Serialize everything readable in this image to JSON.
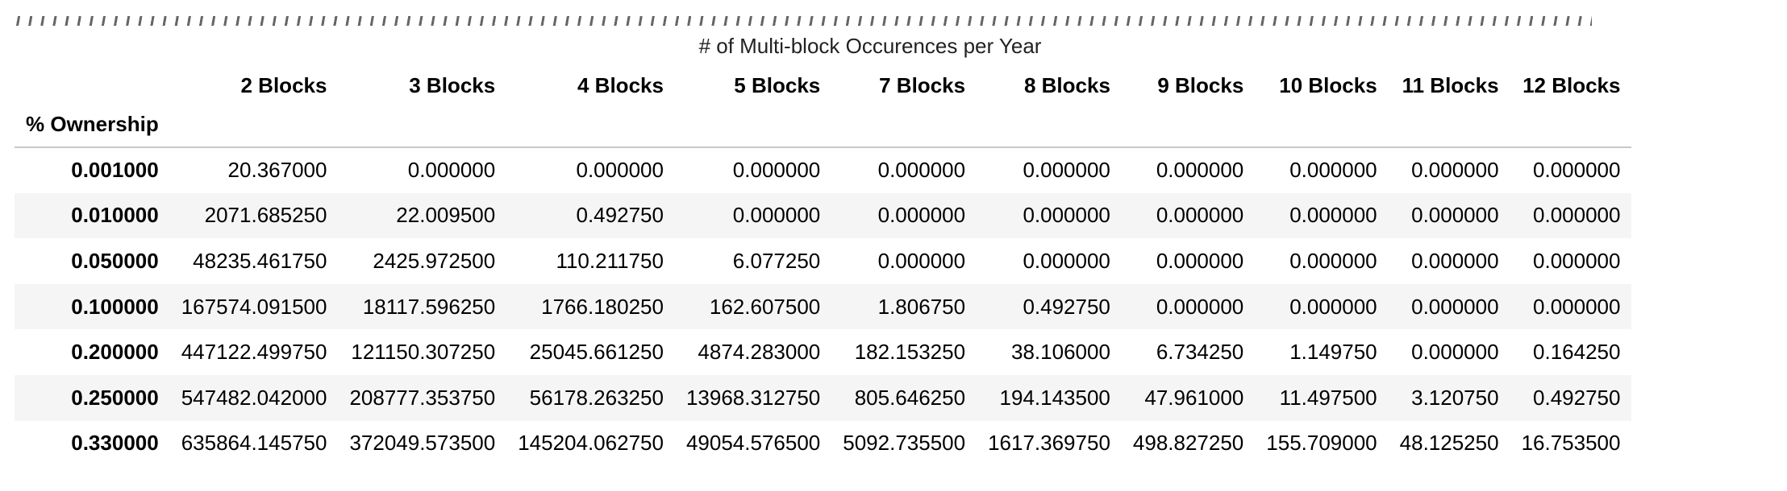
{
  "table": {
    "caption": "# of Multi-block Occurences per Year",
    "index_name": "% Ownership",
    "columns": [
      "2 Blocks",
      "3 Blocks",
      "4 Blocks",
      "5 Blocks",
      "7 Blocks",
      "8 Blocks",
      "9 Blocks",
      "10 Blocks",
      "11 Blocks",
      "12 Blocks"
    ],
    "rows": [
      {
        "index": "0.001000",
        "cells": [
          "20.367000",
          "0.000000",
          "0.000000",
          "0.000000",
          "0.000000",
          "0.000000",
          "0.000000",
          "0.000000",
          "0.000000",
          "0.000000"
        ]
      },
      {
        "index": "0.010000",
        "cells": [
          "2071.685250",
          "22.009500",
          "0.492750",
          "0.000000",
          "0.000000",
          "0.000000",
          "0.000000",
          "0.000000",
          "0.000000",
          "0.000000"
        ]
      },
      {
        "index": "0.050000",
        "cells": [
          "48235.461750",
          "2425.972500",
          "110.211750",
          "6.077250",
          "0.000000",
          "0.000000",
          "0.000000",
          "0.000000",
          "0.000000",
          "0.000000"
        ]
      },
      {
        "index": "0.100000",
        "cells": [
          "167574.091500",
          "18117.596250",
          "1766.180250",
          "162.607500",
          "1.806750",
          "0.492750",
          "0.000000",
          "0.000000",
          "0.000000",
          "0.000000"
        ]
      },
      {
        "index": "0.200000",
        "cells": [
          "447122.499750",
          "121150.307250",
          "25045.661250",
          "4874.283000",
          "182.153250",
          "38.106000",
          "6.734250",
          "1.149750",
          "0.000000",
          "0.164250"
        ]
      },
      {
        "index": "0.250000",
        "cells": [
          "547482.042000",
          "208777.353750",
          "56178.263250",
          "13968.312750",
          "805.646250",
          "194.143500",
          "47.961000",
          "11.497500",
          "3.120750",
          "0.492750"
        ]
      },
      {
        "index": "0.330000",
        "cells": [
          "635864.145750",
          "372049.573500",
          "145204.062750",
          "49054.576500",
          "5092.735500",
          "1617.369750",
          "498.827250",
          "155.709000",
          "48.125250",
          "16.753500"
        ]
      }
    ]
  }
}
